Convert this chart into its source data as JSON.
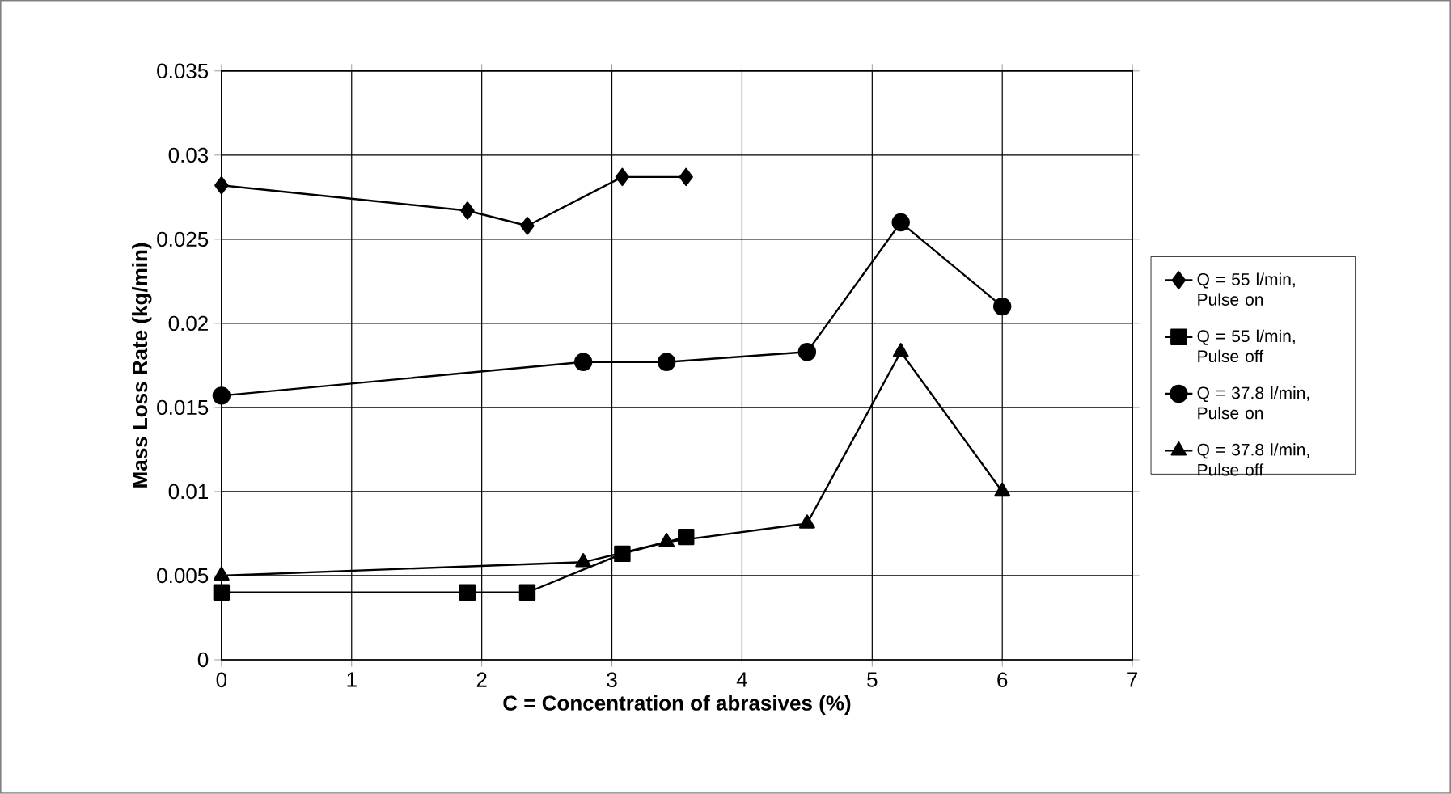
{
  "chart_data": {
    "type": "line",
    "xlabel": "C = Concentration of abrasives (%)",
    "ylabel": "Mass Loss Rate (kg/min)",
    "xlim": [
      0,
      7
    ],
    "xticks": [
      0,
      1,
      2,
      3,
      4,
      5,
      6,
      7
    ],
    "ylim": [
      0,
      0.035
    ],
    "yticks": [
      0,
      0.005,
      0.01,
      0.015,
      0.02,
      0.025,
      0.03,
      0.035
    ],
    "grid": true,
    "legend": "right",
    "line_style": "solid",
    "series": [
      {
        "name": "Q = 55 l/min, Pulse on",
        "color": "#000000",
        "marker": "diamond",
        "x": [
          0,
          1.89,
          2.35,
          3.08,
          3.57
        ],
        "values": [
          0.0282,
          0.0267,
          0.0258,
          0.0287,
          0.0287
        ]
      },
      {
        "name": "Q = 55 l/min, Pulse off",
        "color": "#000000",
        "marker": "square",
        "x": [
          0,
          1.89,
          2.35,
          3.08,
          3.57
        ],
        "values": [
          0.004,
          0.004,
          0.004,
          0.0063,
          0.0073
        ]
      },
      {
        "name": "Q = 37.8 l/min, Pulse on",
        "color": "#000000",
        "marker": "circle",
        "x": [
          0,
          2.78,
          3.42,
          4.5,
          5.22,
          6.0
        ],
        "values": [
          0.0157,
          0.0177,
          0.0177,
          0.0183,
          0.026,
          0.021
        ]
      },
      {
        "name": "Q = 37.8 l/min, Pulse off",
        "color": "#000000",
        "marker": "triangle",
        "x": [
          0,
          2.78,
          3.42,
          4.5,
          5.22,
          6.0
        ],
        "values": [
          0.005,
          0.0058,
          0.007,
          0.0081,
          0.0183,
          0.01
        ]
      }
    ]
  }
}
